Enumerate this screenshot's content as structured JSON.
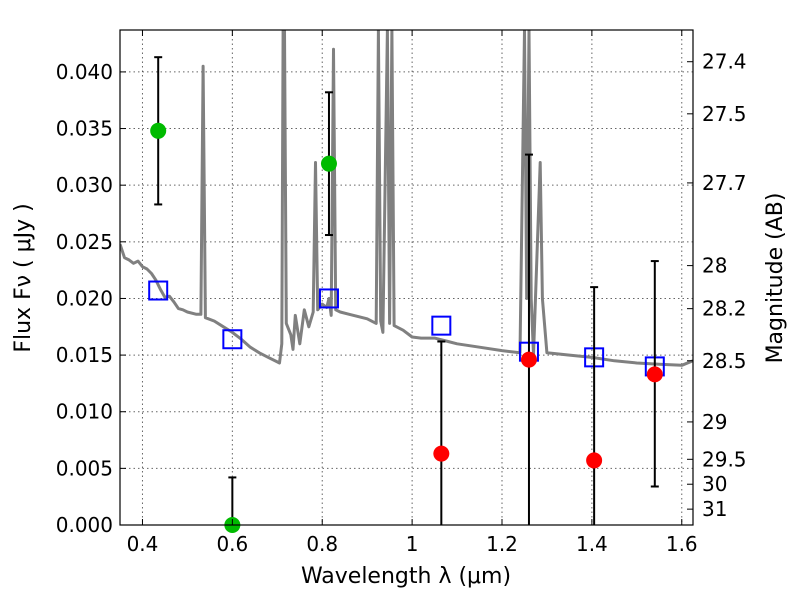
{
  "chart_data": {
    "type": "scatter",
    "xlabel": "Wavelength  λ (μm)",
    "ylabel": "Flux  Fν  ( μJy )",
    "y2label": "Magnitude (AB)",
    "xlim": [
      0.35,
      1.625
    ],
    "ylim": [
      0.0,
      0.0437
    ],
    "x_ticks": [
      0.4,
      0.6,
      0.8,
      1.0,
      1.2,
      1.4,
      1.6
    ],
    "x_tick_labels": [
      "0.4",
      "0.6",
      "0.8",
      "1",
      "1.2",
      "1.4",
      "1.6"
    ],
    "y_ticks": [
      0.0,
      0.005,
      0.01,
      0.015,
      0.02,
      0.025,
      0.03,
      0.035,
      0.04
    ],
    "y_tick_labels": [
      "0.000",
      "0.005",
      "0.010",
      "0.015",
      "0.020",
      "0.025",
      "0.030",
      "0.035",
      "0.040"
    ],
    "mag_ticks": [
      {
        "label": "27.4",
        "flux": 0.0409
      },
      {
        "label": "27.5",
        "flux": 0.0363
      },
      {
        "label": "27.7",
        "flux": 0.0302
      },
      {
        "label": "28",
        "flux": 0.0229
      },
      {
        "label": "28.2",
        "flux": 0.0191
      },
      {
        "label": "28.5",
        "flux": 0.0145
      },
      {
        "label": "29",
        "flux": 0.0091
      },
      {
        "label": "29.5",
        "flux": 0.0058
      },
      {
        "label": "30",
        "flux": 0.0036
      },
      {
        "label": "31",
        "flux": 0.0014
      }
    ],
    "grid": true,
    "model_color": "#808080",
    "model_spectrum": [
      [
        0.35,
        0.0248
      ],
      [
        0.36,
        0.0236
      ],
      [
        0.37,
        0.0234
      ],
      [
        0.38,
        0.0231
      ],
      [
        0.39,
        0.0233
      ],
      [
        0.4,
        0.0228
      ],
      [
        0.41,
        0.0226
      ],
      [
        0.42,
        0.0222
      ],
      [
        0.43,
        0.0216
      ],
      [
        0.44,
        0.0208
      ],
      [
        0.45,
        0.0201
      ],
      [
        0.46,
        0.0202
      ],
      [
        0.47,
        0.0197
      ],
      [
        0.48,
        0.0191
      ],
      [
        0.49,
        0.019
      ],
      [
        0.5,
        0.0188
      ],
      [
        0.52,
        0.0186
      ],
      [
        0.53,
        0.0186
      ],
      [
        0.535,
        0.0405
      ],
      [
        0.54,
        0.0183
      ],
      [
        0.56,
        0.018
      ],
      [
        0.58,
        0.0175
      ],
      [
        0.6,
        0.017
      ],
      [
        0.62,
        0.0164
      ],
      [
        0.64,
        0.0157
      ],
      [
        0.66,
        0.0152
      ],
      [
        0.68,
        0.0148
      ],
      [
        0.7,
        0.0144
      ],
      [
        0.705,
        0.0143
      ],
      [
        0.71,
        0.016
      ],
      [
        0.713,
        0.0437
      ],
      [
        0.716,
        0.0437
      ],
      [
        0.72,
        0.0178
      ],
      [
        0.73,
        0.0168
      ],
      [
        0.735,
        0.0155
      ],
      [
        0.74,
        0.0185
      ],
      [
        0.75,
        0.016
      ],
      [
        0.76,
        0.019
      ],
      [
        0.77,
        0.0175
      ],
      [
        0.78,
        0.0188
      ],
      [
        0.785,
        0.032
      ],
      [
        0.79,
        0.019
      ],
      [
        0.8,
        0.0195
      ],
      [
        0.81,
        0.0192
      ],
      [
        0.815,
        0.02
      ],
      [
        0.82,
        0.0185
      ],
      [
        0.825,
        0.042
      ],
      [
        0.83,
        0.019
      ],
      [
        0.84,
        0.0188
      ],
      [
        0.86,
        0.0186
      ],
      [
        0.88,
        0.0184
      ],
      [
        0.9,
        0.0182
      ],
      [
        0.92,
        0.0178
      ],
      [
        0.925,
        0.0437
      ],
      [
        0.93,
        0.018
      ],
      [
        0.935,
        0.017
      ],
      [
        0.945,
        0.0437
      ],
      [
        0.95,
        0.0178
      ],
      [
        0.955,
        0.0437
      ],
      [
        0.96,
        0.0176
      ],
      [
        0.98,
        0.0172
      ],
      [
        1.0,
        0.0166
      ],
      [
        1.02,
        0.0165
      ],
      [
        1.05,
        0.0165
      ],
      [
        1.08,
        0.0162
      ],
      [
        1.1,
        0.016
      ],
      [
        1.15,
        0.0157
      ],
      [
        1.2,
        0.0154
      ],
      [
        1.24,
        0.0152
      ],
      [
        1.25,
        0.0437
      ],
      [
        1.255,
        0.02
      ],
      [
        1.26,
        0.0437
      ],
      [
        1.265,
        0.02
      ],
      [
        1.27,
        0.015
      ],
      [
        1.285,
        0.032
      ],
      [
        1.29,
        0.02
      ],
      [
        1.3,
        0.0152
      ],
      [
        1.35,
        0.015
      ],
      [
        1.4,
        0.0148
      ],
      [
        1.45,
        0.0145
      ],
      [
        1.5,
        0.0143
      ],
      [
        1.55,
        0.0142
      ],
      [
        1.6,
        0.0141
      ],
      [
        1.625,
        0.0145
      ]
    ],
    "series": [
      {
        "marker": "open-square",
        "color": "#0000ff",
        "x": [
          0.435,
          0.6,
          0.815,
          1.065,
          1.26,
          1.405,
          1.54
        ],
        "y": [
          0.0207,
          0.0164,
          0.02,
          0.0176,
          0.0153,
          0.0148,
          0.014
        ]
      },
      {
        "marker": "filled-circle",
        "color": "#00bb00",
        "x": [
          0.435,
          0.6,
          0.815
        ],
        "y": [
          0.0348,
          0.0,
          0.0319
        ],
        "yerr_low": [
          0.0283,
          0.0,
          0.0256
        ],
        "yerr_high": [
          0.0413,
          0.0042,
          0.0382
        ]
      },
      {
        "marker": "filled-circle",
        "color": "#ff0000",
        "x": [
          1.065,
          1.26,
          1.405,
          1.54
        ],
        "y": [
          0.0063,
          0.0146,
          0.0057,
          0.0133
        ],
        "yerr_low": [
          0.0,
          0.0,
          0.0,
          0.0034
        ],
        "yerr_high": [
          0.0162,
          0.0327,
          0.021,
          0.0233
        ]
      }
    ]
  }
}
